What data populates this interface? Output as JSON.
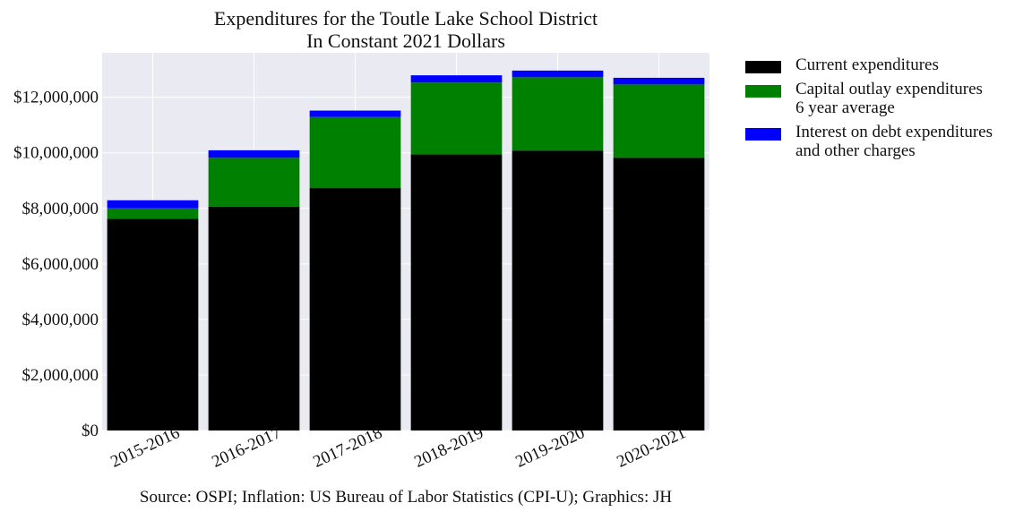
{
  "chart_data": {
    "type": "bar",
    "stacked": true,
    "title": [
      "Expenditures for the Toutle Lake School District",
      "In Constant 2021 Dollars"
    ],
    "caption": "Source: OSPI; Inflation: US Bureau of Labor Statistics (CPI-U); Graphics: JH",
    "categories": [
      "2015-2016",
      "2016-2017",
      "2017-2018",
      "2018-2019",
      "2019-2020",
      "2020-2021"
    ],
    "series": [
      {
        "name": "Current expenditures",
        "legend_lines": [
          "Current expenditures"
        ],
        "color": "#000000",
        "values": [
          7620000,
          8060000,
          8730000,
          9940000,
          10080000,
          9820000
        ]
      },
      {
        "name": "Capital outlay expenditures 6 year average",
        "legend_lines": [
          "Capital outlay expenditures",
          "6 year average"
        ],
        "color": "#008000",
        "values": [
          380000,
          1760000,
          2560000,
          2590000,
          2640000,
          2640000
        ]
      },
      {
        "name": "Interest on debt expenditures and other charges",
        "legend_lines": [
          "Interest on debt expenditures",
          "and other charges"
        ],
        "color": "#0000ff",
        "values": [
          290000,
          270000,
          230000,
          260000,
          240000,
          240000
        ]
      }
    ],
    "ylim": [
      0,
      13600000
    ],
    "yticks": [
      0,
      2000000,
      4000000,
      6000000,
      8000000,
      10000000,
      12000000
    ],
    "ytick_labels": [
      "$0",
      "$2,000,000",
      "$4,000,000",
      "$6,000,000",
      "$8,000,000",
      "$10,000,000",
      "$12,000,000"
    ],
    "grid": true,
    "legend_position": "outside-right",
    "plot_background": "#eaeaf2"
  }
}
